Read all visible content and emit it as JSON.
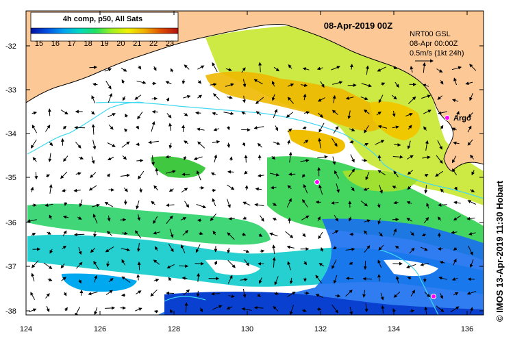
{
  "map": {
    "date_title": "08-Apr-2019 00Z",
    "colorbar": {
      "title": "4h comp, p50, All Sats",
      "ticks": [
        "15",
        "16",
        "17",
        "18",
        "19",
        "20",
        "21",
        "22",
        "23"
      ],
      "range": [
        14.5,
        23.5
      ],
      "colors": [
        "#0010a0",
        "#0050e0",
        "#00a0f0",
        "#00d8c0",
        "#20e060",
        "#a0f020",
        "#f0f000",
        "#f0b000",
        "#e05000",
        "#b01010"
      ]
    },
    "current_info": {
      "line1": "NRT00 GSL",
      "line2": "08-Apr 00:00Z",
      "line3": "0.5m/s (1kt 24h)"
    },
    "argo_label": "Argo",
    "lat_labels": [
      "-32",
      "-33",
      "-34",
      "-35",
      "-36",
      "-37",
      "-38"
    ],
    "lon_labels": [
      "124",
      "126",
      "128",
      "130",
      "132",
      "134",
      "136"
    ],
    "credit": "© IMOS 13-Apr-2019 11:30 Hobart",
    "colors": {
      "land": "#fcc896",
      "ocean": "#ffffff",
      "frame": "#000000",
      "argo_marker": "#ff00ff",
      "contour": "#40d8f0"
    }
  }
}
